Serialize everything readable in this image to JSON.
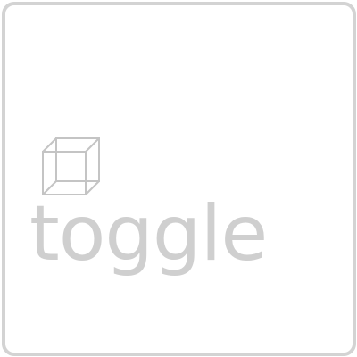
{
  "tile": {
    "label": "toggle",
    "icon": "cube-wireframe-icon",
    "border_color": "#d3d3d3",
    "text_color": "#cfcfcf"
  }
}
